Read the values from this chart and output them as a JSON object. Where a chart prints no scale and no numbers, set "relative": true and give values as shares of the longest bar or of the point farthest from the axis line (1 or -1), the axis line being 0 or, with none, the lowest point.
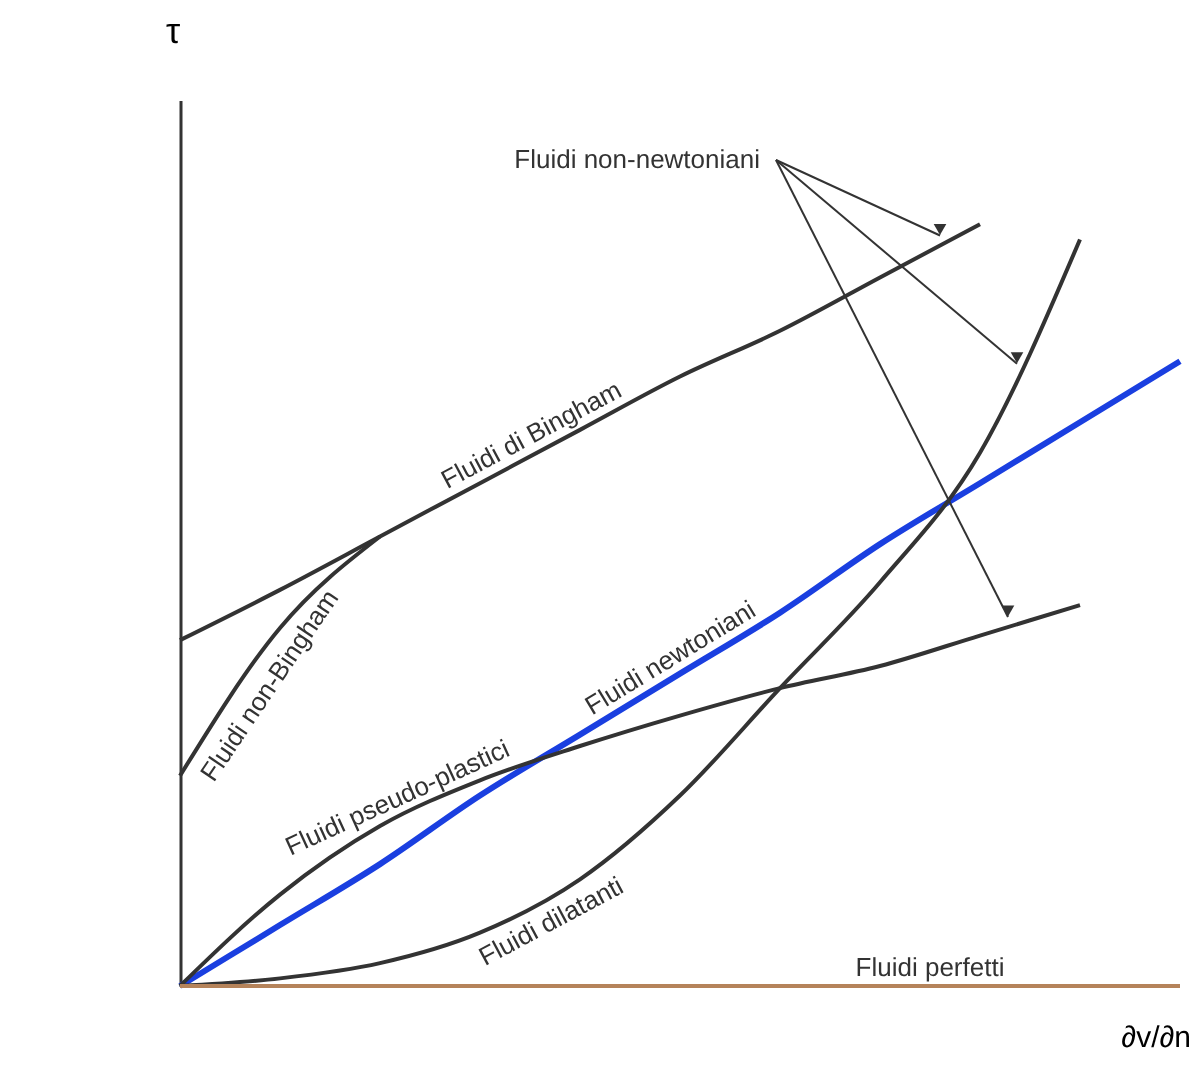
{
  "chart_data": {
    "type": "line",
    "relative": true,
    "xlabel": "∂v/∂n",
    "ylabel": "τ",
    "grid": false,
    "marker": "none",
    "line_style": "solid",
    "annotations": [
      "Fluidi non-newtoniani"
    ],
    "categories": [
      null,
      null,
      null,
      null,
      null,
      null,
      null,
      null,
      null,
      null,
      null
    ],
    "series": [
      {
        "name": "Fluidi di Bingham",
        "color": "#333333",
        "values": [
          0.454,
          0.52,
          0.59,
          0.66,
          0.73,
          0.8,
          0.86,
          0.93,
          1.0,
          null,
          null
        ]
      },
      {
        "name": "Fluidi non-Bingham",
        "color": "#333333",
        "values": [
          0.276,
          0.47,
          0.59,
          null,
          null,
          null,
          null,
          null,
          null,
          null,
          null
        ]
      },
      {
        "name": "Fluidi newtoniani",
        "color": "#1a3fe0",
        "values": [
          0,
          0.08,
          0.16,
          0.25,
          0.33,
          0.41,
          0.49,
          0.58,
          0.66,
          0.74,
          0.82
        ]
      },
      {
        "name": "Fluidi pseudo-plastici",
        "color": "#333333",
        "values": [
          0,
          0.12,
          0.21,
          0.27,
          0.315,
          0.355,
          0.391,
          0.42,
          0.46,
          0.5,
          null
        ]
      },
      {
        "name": "Fluidi dilatanti",
        "color": "#333333",
        "values": [
          0,
          0.01,
          0.03,
          0.07,
          0.14,
          0.25,
          0.391,
          0.53,
          0.7,
          0.98,
          null
        ]
      },
      {
        "name": "Fluidi perfetti",
        "color": "#b5835a",
        "values": [
          0,
          0,
          0,
          0,
          0,
          0,
          0,
          0,
          0,
          0,
          0
        ]
      }
    ]
  }
}
